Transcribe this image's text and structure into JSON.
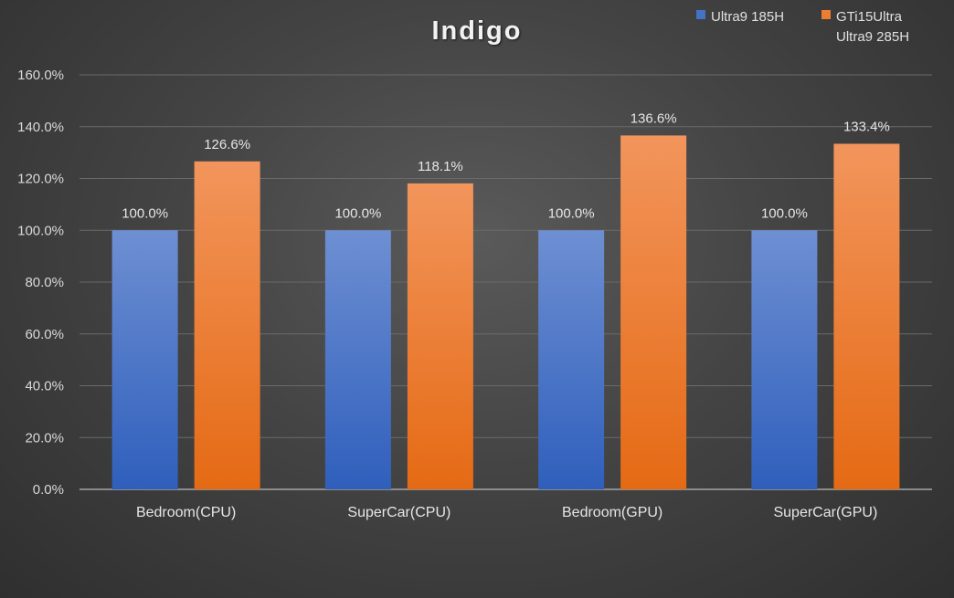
{
  "chart_data": {
    "type": "bar",
    "title": "Indigo",
    "categories": [
      "Bedroom(CPU)",
      "SuperCar(CPU)",
      "Bedroom(GPU)",
      "SuperCar(GPU)"
    ],
    "series": [
      {
        "name": "Ultra9 185H",
        "values": [
          100.0,
          100.0,
          100.0,
          100.0
        ],
        "labels": [
          "100.0%",
          "100.0%",
          "100.0%",
          "100.0%"
        ]
      },
      {
        "name": "GTi15Ultra Ultra9 285H",
        "name_lines": [
          "GTi15Ultra",
          "Ultra9 285H"
        ],
        "values": [
          126.6,
          118.1,
          136.6,
          133.4
        ],
        "labels": [
          "126.6%",
          "118.1%",
          "136.6%",
          "133.4%"
        ]
      }
    ],
    "ylim": [
      0,
      160
    ],
    "yticks": [
      "0.0%",
      "20.0%",
      "40.0%",
      "60.0%",
      "80.0%",
      "100.0%",
      "120.0%",
      "140.0%",
      "160.0%"
    ],
    "xlabel": "",
    "ylabel": "",
    "grid": true,
    "legend_position": "top-right",
    "colors": {
      "Ultra9 185H": "#4472C4",
      "GTi15Ultra Ultra9 285H": "#ED7D31"
    }
  }
}
